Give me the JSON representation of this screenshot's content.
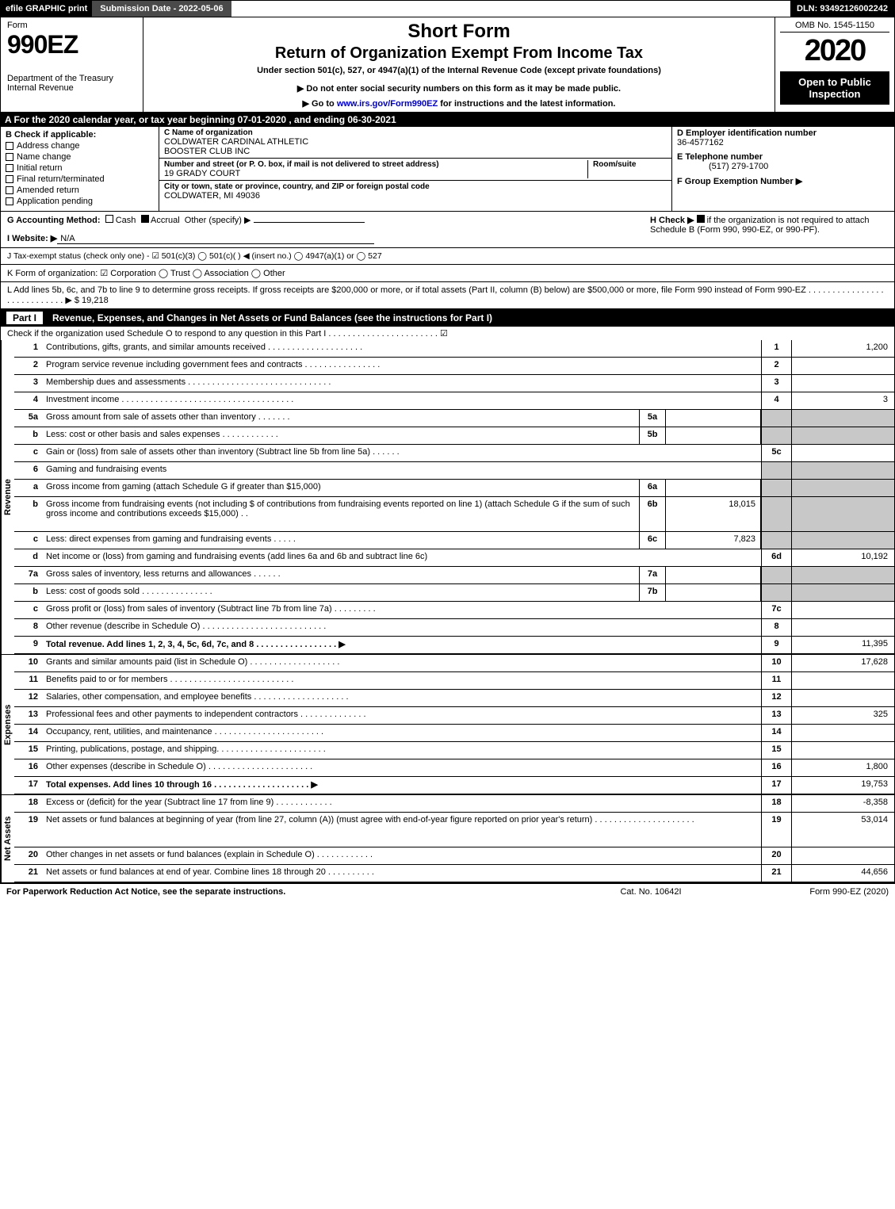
{
  "top": {
    "efile": "efile GRAPHIC print",
    "subdate": "Submission Date - 2022-05-06",
    "dln": "DLN: 93492126002242"
  },
  "header": {
    "form_word": "Form",
    "form_num": "990EZ",
    "dept": "Department of the Treasury\nInternal Revenue",
    "short": "Short Form",
    "return_title": "Return of Organization Exempt From Income Tax",
    "under": "Under section 501(c), 527, or 4947(a)(1) of the Internal Revenue Code (except private foundations)",
    "donot": "▶ Do not enter social security numbers on this form as it may be made public.",
    "goto_pre": "▶ Go to ",
    "goto_link": "www.irs.gov/Form990EZ",
    "goto_post": " for instructions and the latest information.",
    "omb": "OMB No. 1545-1150",
    "year": "2020",
    "open": "Open to Public Inspection"
  },
  "period": "A For the 2020 calendar year, or tax year beginning 07-01-2020 , and ending 06-30-2021",
  "boxB": {
    "label": "B  Check if applicable:",
    "opts": [
      "Address change",
      "Name change",
      "Initial return",
      "Final return/terminated",
      "Amended return",
      "Application pending"
    ]
  },
  "boxC": {
    "name_lab": "C Name of organization",
    "name1": "COLDWATER CARDINAL ATHLETIC",
    "name2": "BOOSTER CLUB INC",
    "street_lab": "Number and street (or P. O. box, if mail is not delivered to street address)",
    "street": "19 GRADY COURT",
    "room_lab": "Room/suite",
    "city_lab": "City or town, state or province, country, and ZIP or foreign postal code",
    "city": "COLDWATER, MI  49036"
  },
  "boxD": {
    "ein_lab": "D Employer identification number",
    "ein": "36-4577162",
    "tel_lab": "E Telephone number",
    "tel": "(517) 279-1700",
    "grp_lab": "F Group Exemption Number  ▶"
  },
  "rowGH": {
    "g_lab": "G Accounting Method:",
    "g_cash": "Cash",
    "g_accr": "Accrual",
    "g_other": "Other (specify) ▶",
    "h_lab": "H  Check ▶",
    "h_text": "if the organization is not required to attach Schedule B (Form 990, 990-EZ, or 990-PF)."
  },
  "website": {
    "lab": "I Website: ▶",
    "val": "N/A"
  },
  "status": "J Tax-exempt status (check only one) - ☑ 501(c)(3)  ◯ 501(c)(  ) ◀ (insert no.)  ◯ 4947(a)(1) or  ◯ 527",
  "korg": "K Form of organization:   ☑ Corporation   ◯ Trust   ◯ Association   ◯ Other",
  "ladd": {
    "text": "L Add lines 5b, 6c, and 7b to line 9 to determine gross receipts. If gross receipts are $200,000 or more, or if total assets (Part II, column (B) below) are $500,000 or more, file Form 990 instead of Form 990-EZ  .  .  .  .  .  .  .  .  .  .  .  .  .  .  .  .  .  .  .  .  .  .  .  .  .  .  .  .  ▶ $ ",
    "val": "19,218"
  },
  "part1": {
    "tag": "Part I",
    "title": "Revenue, Expenses, and Changes in Net Assets or Fund Balances (see the instructions for Part I)",
    "check": "Check if the organization used Schedule O to respond to any question in this Part I .  .  .  .  .  .  .  .  .  .  .  .  .  .  .  .  .  .  .  .  .  .  .  ☑"
  },
  "vlabels": {
    "rev": "Revenue",
    "exp": "Expenses",
    "net": "Net Assets"
  },
  "rev": [
    {
      "n": "1",
      "d": "Contributions, gifts, grants, and similar amounts received .  .  .  .  .  .  .  .  .  .  .  .  .  .  .  .  .  .  .  .",
      "rn": "1",
      "rv": "1,200"
    },
    {
      "n": "2",
      "d": "Program service revenue including government fees and contracts .  .  .  .  .  .  .  .  .  .  .  .  .  .  .  .",
      "rn": "2",
      "rv": ""
    },
    {
      "n": "3",
      "d": "Membership dues and assessments .  .  .  .  .  .  .  .  .  .  .  .  .  .  .  .  .  .  .  .  .  .  .  .  .  .  .  .  .  .",
      "rn": "3",
      "rv": ""
    },
    {
      "n": "4",
      "d": "Investment income .  .  .  .  .  .  .  .  .  .  .  .  .  .  .  .  .  .  .  .  .  .  .  .  .  .  .  .  .  .  .  .  .  .  .  .",
      "rn": "4",
      "rv": "3"
    },
    {
      "n": "5a",
      "d": "Gross amount from sale of assets other than inventory .  .  .  .  .  .  .",
      "mn": "5a",
      "mv": "",
      "grey": true
    },
    {
      "n": "b",
      "d": "Less: cost or other basis and sales expenses .  .  .  .  .  .  .  .  .  .  .  .",
      "mn": "5b",
      "mv": "",
      "grey": true
    },
    {
      "n": "c",
      "d": "Gain or (loss) from sale of assets other than inventory (Subtract line 5b from line 5a) .  .  .  .  .  .",
      "rn": "5c",
      "rv": ""
    },
    {
      "n": "6",
      "d": "Gaming and fundraising events",
      "grey": true,
      "nomid": true
    },
    {
      "n": "a",
      "d": "Gross income from gaming (attach Schedule G if greater than $15,000)",
      "mn": "6a",
      "mv": "",
      "grey": true
    },
    {
      "n": "b",
      "d": "Gross income from fundraising events (not including $                       of contributions from fundraising events reported on line 1) (attach Schedule G if the sum of such gross income and contributions exceeds $15,000)     .  .",
      "mn": "6b",
      "mv": "18,015",
      "grey": true,
      "tall": true
    },
    {
      "n": "c",
      "d": "Less: direct expenses from gaming and fundraising events   .  .  .  .  .",
      "mn": "6c",
      "mv": "7,823",
      "grey": true
    },
    {
      "n": "d",
      "d": "Net income or (loss) from gaming and fundraising events (add lines 6a and 6b and subtract line 6c)",
      "rn": "6d",
      "rv": "10,192"
    },
    {
      "n": "7a",
      "d": "Gross sales of inventory, less returns and allowances .  .  .  .  .  .",
      "mn": "7a",
      "mv": "",
      "grey": true
    },
    {
      "n": "b",
      "d": "Less: cost of goods sold        .  .  .  .  .  .  .  .  .  .  .  .  .  .  .",
      "mn": "7b",
      "mv": "",
      "grey": true
    },
    {
      "n": "c",
      "d": "Gross profit or (loss) from sales of inventory (Subtract line 7b from line 7a) .  .  .  .  .  .  .  .  .",
      "rn": "7c",
      "rv": ""
    },
    {
      "n": "8",
      "d": "Other revenue (describe in Schedule O) .  .  .  .  .  .  .  .  .  .  .  .  .  .  .  .  .  .  .  .  .  .  .  .  .  .",
      "rn": "8",
      "rv": ""
    },
    {
      "n": "9",
      "d": "Total revenue. Add lines 1, 2, 3, 4, 5c, 6d, 7c, and 8   .  .  .  .  .  .  .  .  .  .  .  .  .  .  .  .  .   ▶",
      "rn": "9",
      "rv": "11,395",
      "bold": true
    }
  ],
  "exp": [
    {
      "n": "10",
      "d": "Grants and similar amounts paid (list in Schedule O) .  .  .  .  .  .  .  .  .  .  .  .  .  .  .  .  .  .  .",
      "rn": "10",
      "rv": "17,628"
    },
    {
      "n": "11",
      "d": "Benefits paid to or for members     .  .  .  .  .  .  .  .  .  .  .  .  .  .  .  .  .  .  .  .  .  .  .  .  .  .",
      "rn": "11",
      "rv": ""
    },
    {
      "n": "12",
      "d": "Salaries, other compensation, and employee benefits .  .  .  .  .  .  .  .  .  .  .  .  .  .  .  .  .  .  .  .",
      "rn": "12",
      "rv": ""
    },
    {
      "n": "13",
      "d": "Professional fees and other payments to independent contractors .  .  .  .  .  .  .  .  .  .  .  .  .  .",
      "rn": "13",
      "rv": "325"
    },
    {
      "n": "14",
      "d": "Occupancy, rent, utilities, and maintenance .  .  .  .  .  .  .  .  .  .  .  .  .  .  .  .  .  .  .  .  .  .  .",
      "rn": "14",
      "rv": ""
    },
    {
      "n": "15",
      "d": "Printing, publications, postage, and shipping.  .  .  .  .  .  .  .  .  .  .  .  .  .  .  .  .  .  .  .  .  .  .",
      "rn": "15",
      "rv": ""
    },
    {
      "n": "16",
      "d": "Other expenses (describe in Schedule O)     .  .  .  .  .  .  .  .  .  .  .  .  .  .  .  .  .  .  .  .  .  .",
      "rn": "16",
      "rv": "1,800"
    },
    {
      "n": "17",
      "d": "Total expenses. Add lines 10 through 16     .  .  .  .  .  .  .  .  .  .  .  .  .  .  .  .  .  .  .  .   ▶",
      "rn": "17",
      "rv": "19,753",
      "bold": true
    }
  ],
  "net": [
    {
      "n": "18",
      "d": "Excess or (deficit) for the year (Subtract line 17 from line 9)       .  .  .  .  .  .  .  .  .  .  .  .",
      "rn": "18",
      "rv": "-8,358"
    },
    {
      "n": "19",
      "d": "Net assets or fund balances at beginning of year (from line 27, column (A)) (must agree with end-of-year figure reported on prior year's return) .  .  .  .  .  .  .  .  .  .  .  .  .  .  .  .  .  .  .  .  .",
      "rn": "19",
      "rv": "53,014",
      "tall": true
    },
    {
      "n": "20",
      "d": "Other changes in net assets or fund balances (explain in Schedule O) .  .  .  .  .  .  .  .  .  .  .  .",
      "rn": "20",
      "rv": ""
    },
    {
      "n": "21",
      "d": "Net assets or fund balances at end of year. Combine lines 18 through 20 .  .  .  .  .  .  .  .  .  .",
      "rn": "21",
      "rv": "44,656"
    }
  ],
  "footer": {
    "l": "For Paperwork Reduction Act Notice, see the separate instructions.",
    "c": "Cat. No. 10642I",
    "r": "Form 990-EZ (2020)"
  }
}
